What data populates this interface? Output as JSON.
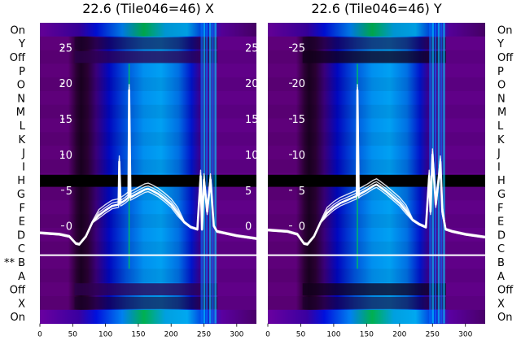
{
  "chart_data": [
    {
      "type": "heatmap",
      "title": "22.6 (Tile046=46) X",
      "x_ticks": [
        "0",
        "50",
        "100",
        "150",
        "200",
        "250",
        "300"
      ],
      "xlim": [
        0,
        330
      ],
      "row_labels": [
        "On",
        "Y",
        "Off",
        "P",
        "O",
        "N",
        "M",
        "L",
        "K",
        "J",
        "I",
        "H",
        "G",
        "F",
        "E",
        "D",
        "C",
        "** B",
        "A",
        "Off",
        "X",
        "On"
      ],
      "overlay_y_ticks": [
        "25",
        "20",
        "15",
        "10",
        "5",
        "0"
      ],
      "overlay_ylim": [
        -3,
        28
      ],
      "series": [
        {
          "name": "profile",
          "x": [
            0,
            30,
            45,
            55,
            60,
            70,
            80,
            90,
            100,
            110,
            120,
            121,
            123,
            125,
            130,
            135,
            136,
            138,
            140,
            150,
            160,
            165,
            170,
            180,
            190,
            200,
            210,
            220,
            230,
            240,
            245,
            247,
            250,
            255,
            260,
            265,
            270,
            280,
            300,
            330
          ],
          "y": [
            -1,
            -1.2,
            -1.5,
            -2.5,
            -2.6,
            -1.5,
            0.5,
            1.5,
            2.2,
            2.8,
            3,
            9,
            3.2,
            3.3,
            3.6,
            4,
            19,
            4,
            4.1,
            4.6,
            5.1,
            5.2,
            5,
            4.5,
            3.8,
            3,
            1.8,
            0.5,
            -0.2,
            -0.5,
            7,
            -0.5,
            6.5,
            2,
            6.5,
            0,
            -0.8,
            -1,
            -1.4,
            -1.8
          ]
        }
      ]
    },
    {
      "type": "heatmap",
      "title": "22.6 (Tile046=46) Y",
      "x_ticks": [
        "0",
        "50",
        "100",
        "150",
        "200",
        "250",
        "300"
      ],
      "xlim": [
        0,
        330
      ],
      "row_labels": [
        "On",
        "Y",
        "Off",
        "P",
        "O",
        "N",
        "M",
        "L",
        "K",
        "J",
        "I",
        "H",
        "G",
        "F",
        "E",
        "D",
        "C",
        "B",
        "A",
        "Off",
        "X",
        "On"
      ],
      "overlay_y_ticks": [
        "25",
        "20",
        "15",
        "10",
        "5",
        "0"
      ],
      "overlay_ylim": [
        -3,
        28
      ],
      "series": [
        {
          "name": "profile",
          "x": [
            0,
            30,
            45,
            55,
            60,
            70,
            80,
            90,
            100,
            110,
            120,
            130,
            135,
            136,
            138,
            140,
            150,
            160,
            165,
            170,
            180,
            190,
            200,
            210,
            220,
            230,
            240,
            245,
            247,
            250,
            255,
            260,
            262,
            265,
            270,
            280,
            300,
            330
          ],
          "y": [
            -0.6,
            -0.8,
            -1.2,
            -2.5,
            -2.6,
            -1.5,
            0.5,
            1.8,
            2.6,
            3.2,
            3.6,
            4,
            4.2,
            19,
            4.3,
            4.5,
            5,
            5.6,
            5.8,
            5.5,
            4.8,
            4,
            3.2,
            2.1,
            0.8,
            0.2,
            -0.2,
            7,
            2,
            10,
            3,
            7,
            9,
            2,
            -0.5,
            -0.8,
            -1.2,
            -1.6
          ]
        }
      ]
    }
  ]
}
